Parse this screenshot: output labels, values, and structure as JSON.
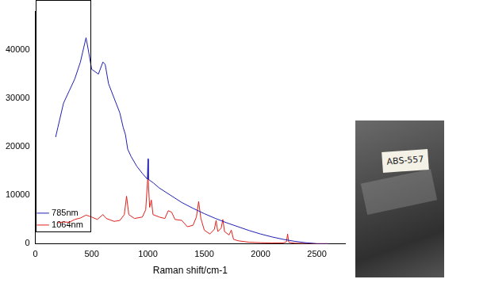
{
  "chart_data": {
    "type": "line",
    "x_label": "Raman shift/cm-1",
    "xlim": [
      0,
      2750
    ],
    "xticks": [
      0,
      500,
      1000,
      1500,
      2000,
      2500
    ],
    "ylim": [
      0,
      48000
    ],
    "yticks": [
      0,
      10000,
      20000,
      30000,
      40000
    ],
    "grid": false,
    "legend": "upper right",
    "series": [
      {
        "name": "785nm",
        "color": "#1f1fb4",
        "x": [
          180,
          200,
          250,
          300,
          350,
          400,
          430,
          450,
          470,
          500,
          530,
          560,
          600,
          620,
          650,
          700,
          750,
          780,
          800,
          820,
          850,
          900,
          950,
          995,
          1000,
          1003,
          1050,
          1100,
          1200,
          1300,
          1400,
          1500,
          1600,
          1700,
          1800,
          1900,
          2000,
          2100,
          2200,
          2300,
          2400,
          2500,
          2600
        ],
        "values": [
          22000,
          24000,
          29000,
          31500,
          34000,
          37500,
          40500,
          42500,
          40000,
          36000,
          35500,
          35000,
          37500,
          37000,
          33000,
          30000,
          27000,
          24000,
          22500,
          19500,
          18000,
          16000,
          14500,
          13300,
          17500,
          13300,
          12500,
          11500,
          10000,
          8500,
          7300,
          6200,
          5200,
          4300,
          3500,
          2700,
          2000,
          1400,
          900,
          500,
          200,
          0,
          0
        ]
      },
      {
        "name": "1064nm",
        "color": "#e0201b",
        "x": [
          200,
          250,
          300,
          350,
          400,
          450,
          500,
          550,
          600,
          630,
          700,
          750,
          790,
          810,
          830,
          880,
          950,
          980,
          1000,
          1015,
          1030,
          1045,
          1100,
          1150,
          1180,
          1210,
          1240,
          1300,
          1350,
          1400,
          1430,
          1450,
          1470,
          1500,
          1550,
          1590,
          1605,
          1620,
          1650,
          1665,
          1680,
          1720,
          1740,
          1760,
          1800,
          1900,
          2000,
          2100,
          2200,
          2230,
          2240,
          2250,
          2300,
          2400,
          2500,
          2600
        ],
        "values": [
          4300,
          4500,
          4400,
          5000,
          5300,
          5900,
          5500,
          5000,
          6000,
          5200,
          4600,
          4800,
          6000,
          9800,
          6000,
          5200,
          5500,
          7000,
          14200,
          7500,
          9000,
          6000,
          5500,
          5200,
          6800,
          6500,
          5000,
          4800,
          3500,
          3800,
          5500,
          8700,
          5200,
          2800,
          2000,
          3000,
          4800,
          2500,
          3200,
          5000,
          2500,
          1800,
          2800,
          900,
          600,
          300,
          200,
          150,
          150,
          400,
          2000,
          300,
          100,
          50,
          0,
          0
        ]
      }
    ]
  },
  "photo": {
    "label": "ABS-557"
  }
}
